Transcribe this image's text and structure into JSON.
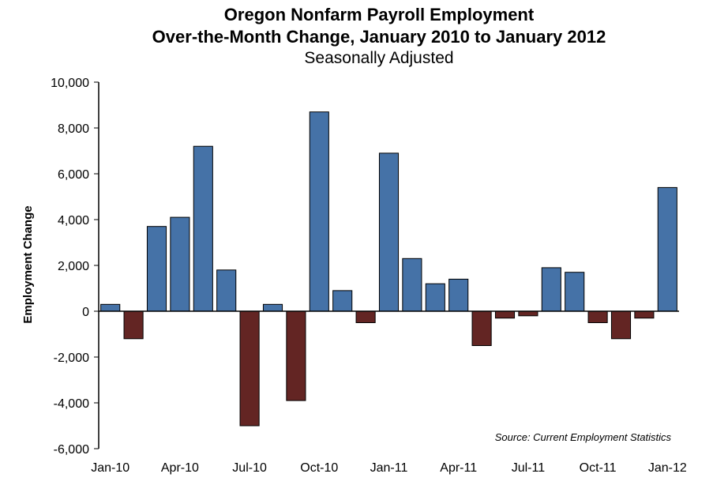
{
  "chart_data": {
    "type": "bar",
    "title": "Oregon Nonfarm Payroll Employment",
    "subtitle": "Over-the-Month Change, January 2010 to January 2012",
    "subtitle2": "Seasonally Adjusted",
    "ylabel": "Employment Change",
    "xlabel": "",
    "ylim": [
      -6000,
      10000
    ],
    "yticks": [
      10000,
      8000,
      6000,
      4000,
      2000,
      0,
      -2000,
      -4000,
      -6000
    ],
    "ytick_labels": [
      "10,000",
      "8,000",
      "6,000",
      "4,000",
      "2,000",
      "0",
      "-2,000",
      "-4,000",
      "-6,000"
    ],
    "categories": [
      "Jan-10",
      "Feb-10",
      "Mar-10",
      "Apr-10",
      "May-10",
      "Jun-10",
      "Jul-10",
      "Aug-10",
      "Sep-10",
      "Oct-10",
      "Nov-10",
      "Dec-10",
      "Jan-11",
      "Feb-11",
      "Mar-11",
      "Apr-11",
      "May-11",
      "Jun-11",
      "Jul-11",
      "Aug-11",
      "Sep-11",
      "Oct-11",
      "Nov-11",
      "Dec-11",
      "Jan-12"
    ],
    "values": [
      300,
      -1200,
      3700,
      4100,
      7200,
      1800,
      -5000,
      300,
      -3900,
      8700,
      900,
      -500,
      6900,
      2300,
      1200,
      1400,
      -1500,
      -300,
      -200,
      1900,
      1700,
      -500,
      -1200,
      -300,
      5400
    ],
    "xtick_labels": [
      "Jan-10",
      "Apr-10",
      "Jul-10",
      "Oct-10",
      "Jan-11",
      "Apr-11",
      "Jul-11",
      "Oct-11",
      "Jan-12"
    ],
    "annotation": "Source: Current Employment Statistics",
    "colors": {
      "positive": "#4572A7",
      "negative": "#632523",
      "axis": "#000000"
    },
    "grid": false,
    "legend": "none"
  }
}
